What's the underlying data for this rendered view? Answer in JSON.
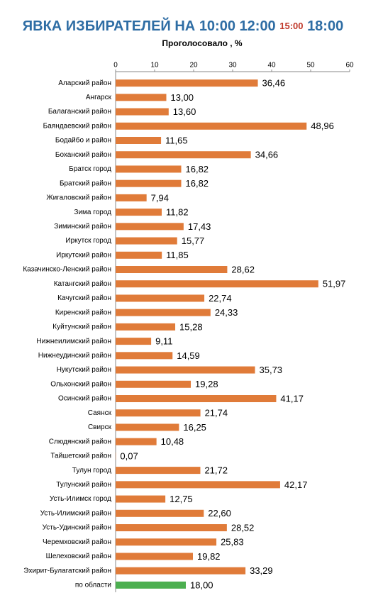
{
  "chart_data": {
    "type": "bar",
    "orientation": "horizontal",
    "title": [
      "ЯВКА ИЗБИРАТЕЛЕЙ НА",
      "10:00",
      "12:00",
      "15:00",
      "18:00"
    ],
    "subtitle": "Проголосовало , %",
    "categories": [
      "Аларский район",
      "Ангарск",
      "Балаганский район",
      "Баяндаевский район",
      "Бодайбо и район",
      "Боханский район",
      "Братск город",
      "Братский район",
      "Жигаловский район",
      "Зима город",
      "Зиминский район",
      "Иркутск город",
      "Иркутский район",
      "Казачинско-Ленский район",
      "Катангский район",
      "Качугский район",
      "Киренский район",
      "Куйтунский район",
      "Нижнеилимский район",
      "Нижнеудинский район",
      "Нукутский район",
      "Ольхонский район",
      "Осинский район",
      "Саянск",
      "Свирск",
      "Слюдянский район",
      "Тайшетский район",
      "Тулун город",
      "Тулунский район",
      "Усть-Илимск город",
      "Усть-Илимский район",
      "Усть-Удинский район",
      "Черемховский район",
      "Шелеховский район",
      "Эхирит-Булагатский район",
      "по области"
    ],
    "values": [
      36.46,
      13.0,
      13.6,
      48.96,
      11.65,
      34.66,
      16.82,
      16.82,
      7.94,
      11.82,
      17.43,
      15.77,
      11.85,
      28.62,
      51.97,
      22.74,
      24.33,
      15.28,
      9.11,
      14.59,
      35.73,
      19.28,
      41.17,
      21.74,
      16.25,
      10.48,
      0.07,
      21.72,
      42.17,
      12.75,
      22.6,
      28.52,
      25.83,
      19.82,
      33.29,
      18.0
    ],
    "value_labels": [
      "36,46",
      "13,00",
      "13,60",
      "48,96",
      "11,65",
      "34,66",
      "16,82",
      "16,82",
      "7,94",
      "11,82",
      "17,43",
      "15,77",
      "11,85",
      "28,62",
      "51,97",
      "22,74",
      "24,33",
      "15,28",
      "9,11",
      "14,59",
      "35,73",
      "19,28",
      "41,17",
      "21,74",
      "16,25",
      "10,48",
      "0,07",
      "21,72",
      "42,17",
      "12,75",
      "22,60",
      "28,52",
      "25,83",
      "19,82",
      "33,29",
      "18,00"
    ],
    "colors": [
      "#e07b39",
      "#e07b39",
      "#e07b39",
      "#e07b39",
      "#e07b39",
      "#e07b39",
      "#e07b39",
      "#e07b39",
      "#e07b39",
      "#e07b39",
      "#e07b39",
      "#e07b39",
      "#e07b39",
      "#e07b39",
      "#e07b39",
      "#e07b39",
      "#e07b39",
      "#e07b39",
      "#e07b39",
      "#e07b39",
      "#e07b39",
      "#e07b39",
      "#e07b39",
      "#e07b39",
      "#e07b39",
      "#e07b39",
      "#e07b39",
      "#e07b39",
      "#e07b39",
      "#e07b39",
      "#e07b39",
      "#e07b39",
      "#e07b39",
      "#e07b39",
      "#e07b39",
      "#4caf50"
    ],
    "xlim": [
      0,
      60
    ],
    "xticks": [
      0,
      10,
      20,
      30,
      40,
      50,
      60
    ],
    "grid": false
  }
}
